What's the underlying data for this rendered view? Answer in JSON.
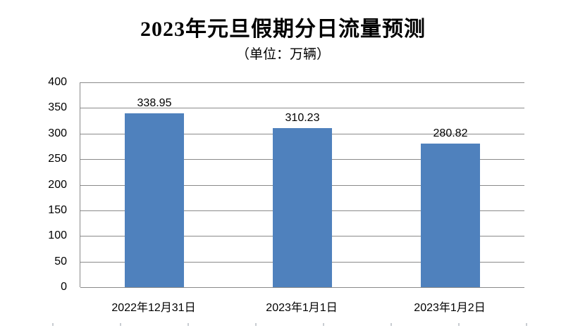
{
  "chart": {
    "title": "2023年元旦假期分日流量预测",
    "subtitle": "（单位：万辆）"
  },
  "chart_data": {
    "type": "bar",
    "title": "2023年元旦假期分日流量预测",
    "subtitle": "（单位：万辆）",
    "categories": [
      "2022年12月31日",
      "2023年1月1日",
      "2023年1月2日"
    ],
    "values": [
      338.95,
      310.23,
      280.82
    ],
    "data_labels": [
      "338.95",
      "310.23",
      "280.82"
    ],
    "xlabel": "",
    "ylabel": "",
    "ylim": [
      0,
      400
    ],
    "yticks": [
      0,
      50,
      100,
      150,
      200,
      250,
      300,
      350,
      400
    ],
    "grid": true,
    "legend": false,
    "bar_color": "#4F81BD",
    "gridline_color": "#8a8a8a",
    "label_color": "#000000"
  }
}
